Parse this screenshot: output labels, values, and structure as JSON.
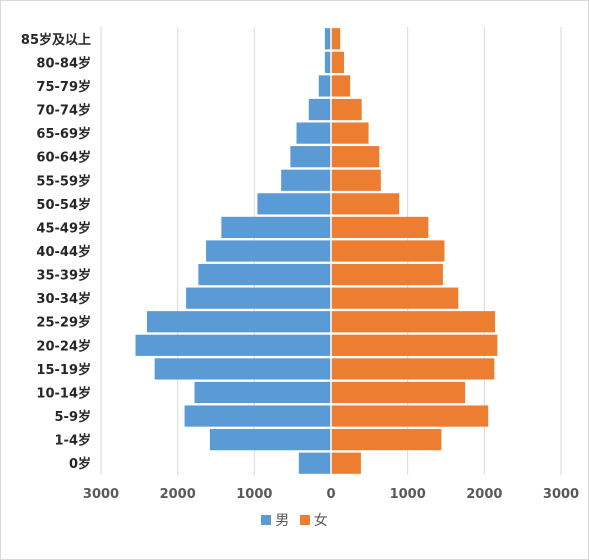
{
  "chart_data": {
    "type": "bar",
    "orientation": "horizontal",
    "subtype": "population-pyramid",
    "title": "",
    "xlabel": "",
    "ylabel": "",
    "xlim": [
      -3000,
      3000
    ],
    "x_ticks": [
      -3000,
      -2000,
      -1000,
      0,
      1000,
      2000,
      3000
    ],
    "x_tick_labels": [
      "3000",
      "2000",
      "1000",
      "0",
      "1000",
      "2000",
      "3000"
    ],
    "categories": [
      "0岁",
      "1-4岁",
      "5-9岁",
      "10-14岁",
      "15-19岁",
      "20-24岁",
      "25-29岁",
      "30-34岁",
      "35-39岁",
      "40-44岁",
      "45-49岁",
      "50-54岁",
      "55-59岁",
      "60-64岁",
      "65-69岁",
      "70-74岁",
      "75-79岁",
      "80-84岁",
      "85岁及以上"
    ],
    "series": [
      {
        "name": "男",
        "color": "#5b9bd5",
        "direction": "left",
        "values": [
          420,
          1580,
          1910,
          1780,
          2300,
          2550,
          2400,
          1890,
          1730,
          1630,
          1430,
          960,
          650,
          530,
          450,
          290,
          160,
          80,
          80
        ]
      },
      {
        "name": "女",
        "color": "#ed7d31",
        "direction": "right",
        "values": [
          390,
          1440,
          2050,
          1750,
          2130,
          2170,
          2140,
          1660,
          1460,
          1480,
          1270,
          890,
          650,
          630,
          490,
          400,
          250,
          170,
          120
        ]
      }
    ],
    "grid": true,
    "grid_color": "#d9d9d9",
    "legend_position": "bottom"
  }
}
